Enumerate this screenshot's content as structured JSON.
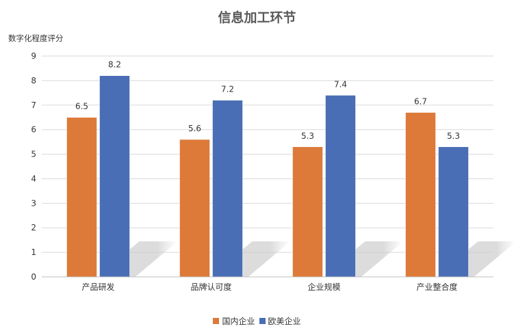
{
  "chart_data": {
    "type": "bar",
    "title": "信息加工环节",
    "ylabel": "数字化程度评分",
    "xlabel": "",
    "categories": [
      "产品研发",
      "品牌认可度",
      "企业规模",
      "产业整合度"
    ],
    "series": [
      {
        "name": "国内企业",
        "color": "#DD7A39",
        "values": [
          6.5,
          5.6,
          5.3,
          6.7
        ]
      },
      {
        "name": "欧美企业",
        "color": "#4A6EB5",
        "values": [
          8.2,
          7.2,
          7.4,
          5.3
        ]
      }
    ],
    "ylim": [
      0,
      9
    ],
    "yticks": [
      "0",
      "1",
      "2",
      "3",
      "4",
      "5",
      "6",
      "7",
      "8",
      "9"
    ],
    "grid": true,
    "legend_position": "bottom",
    "data_labels": true
  }
}
